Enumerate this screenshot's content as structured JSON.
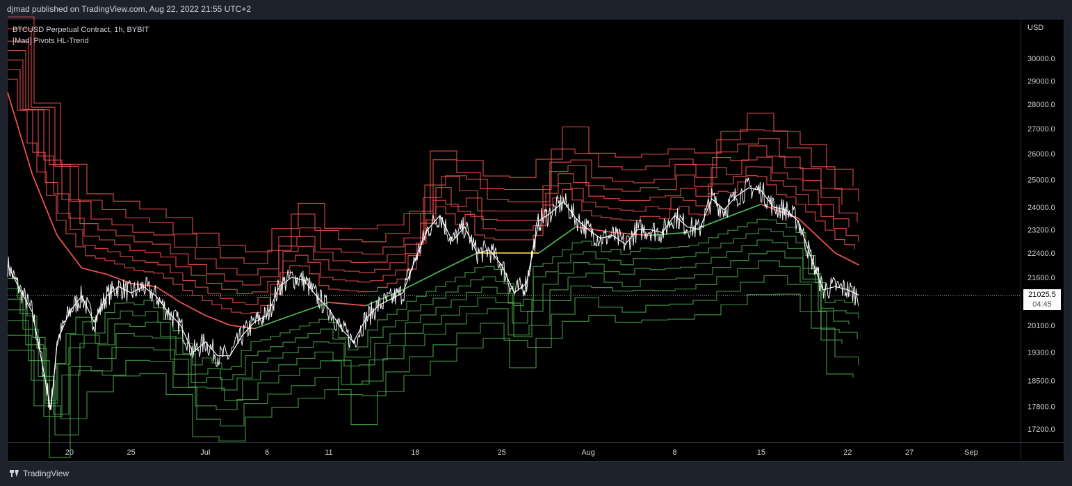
{
  "header": {
    "published": "djmad published on TradingView.com, Aug 22, 2022 21:55 UTC+2"
  },
  "legend": {
    "symbol": "BTCUSD Perpetual Contract, 1h, BYBIT",
    "indicator": "[Mad] Pivots HL-Trend"
  },
  "axis": {
    "currency": "USD"
  },
  "last_price": {
    "value": "21025.5",
    "countdown": "04:45"
  },
  "footer": {
    "brand": "TradingView"
  },
  "colors": {
    "price": "#ffffff",
    "bull": "#4caf50",
    "bear": "#f05050",
    "neutral": "#f0d030",
    "background": "#000000"
  },
  "chart_data": {
    "type": "line",
    "title": "BTCUSD Perpetual Contract, 1h, BYBIT",
    "y_scale": "log",
    "ylim": [
      16900,
      31800
    ],
    "y_ticks": [
      30000.0,
      29000.0,
      28000.0,
      27000.0,
      26000.0,
      25000.0,
      24000.0,
      23200.0,
      22400.0,
      21600.0,
      20100.0,
      19300.0,
      18500.0,
      17800.0,
      17200.0
    ],
    "x_ticks": [
      {
        "label": "20",
        "date": "2022-06-20"
      },
      {
        "label": "25",
        "date": "2022-06-25"
      },
      {
        "label": "Jul",
        "date": "2022-07-01"
      },
      {
        "label": "6",
        "date": "2022-07-06"
      },
      {
        "label": "11",
        "date": "2022-07-11"
      },
      {
        "label": "18",
        "date": "2022-07-18"
      },
      {
        "label": "25",
        "date": "2022-07-25"
      },
      {
        "label": "Aug",
        "date": "2022-08-01"
      },
      {
        "label": "8",
        "date": "2022-08-08"
      },
      {
        "label": "15",
        "date": "2022-08-15"
      },
      {
        "label": "22",
        "date": "2022-08-22"
      },
      {
        "label": "27",
        "date": "2022-08-27"
      },
      {
        "label": "Sep",
        "date": "2022-09-01"
      }
    ],
    "xlim": [
      "2022-06-15",
      "2022-09-05"
    ],
    "last_price_line": 21025.5,
    "series": [
      {
        "role": "price",
        "points": [
          [
            "2022-06-15",
            22000
          ],
          [
            "2022-06-16",
            21200
          ],
          [
            "2022-06-17",
            20500
          ],
          [
            "2022-06-18",
            18600
          ],
          [
            "2022-06-18T12",
            17700
          ],
          [
            "2022-06-19",
            19600
          ],
          [
            "2022-06-20",
            20500
          ],
          [
            "2022-06-21",
            21000
          ],
          [
            "2022-06-22",
            20200
          ],
          [
            "2022-06-23",
            21000
          ],
          [
            "2022-06-24",
            21300
          ],
          [
            "2022-06-25",
            21100
          ],
          [
            "2022-06-26",
            21300
          ],
          [
            "2022-06-27",
            21000
          ],
          [
            "2022-06-28",
            20500
          ],
          [
            "2022-06-29",
            20100
          ],
          [
            "2022-06-30",
            19300
          ],
          [
            "2022-07-01",
            19600
          ],
          [
            "2022-07-02",
            19200
          ],
          [
            "2022-07-03",
            19200
          ],
          [
            "2022-07-04",
            19800
          ],
          [
            "2022-07-05",
            20200
          ],
          [
            "2022-07-06",
            20400
          ],
          [
            "2022-07-07",
            21300
          ],
          [
            "2022-07-08",
            21600
          ],
          [
            "2022-07-09",
            21500
          ],
          [
            "2022-07-10",
            21000
          ],
          [
            "2022-07-11",
            20600
          ],
          [
            "2022-07-12",
            20000
          ],
          [
            "2022-07-13",
            19600
          ],
          [
            "2022-07-14",
            20300
          ],
          [
            "2022-07-15",
            20700
          ],
          [
            "2022-07-16",
            20900
          ],
          [
            "2022-07-17",
            21100
          ],
          [
            "2022-07-18",
            22200
          ],
          [
            "2022-07-19",
            23200
          ],
          [
            "2022-07-20",
            23700
          ],
          [
            "2022-07-21",
            22800
          ],
          [
            "2022-07-22",
            23300
          ],
          [
            "2022-07-23",
            22400
          ],
          [
            "2022-07-24",
            22500
          ],
          [
            "2022-07-25",
            22000
          ],
          [
            "2022-07-26",
            21100
          ],
          [
            "2022-07-27",
            21400
          ],
          [
            "2022-07-28",
            23500
          ],
          [
            "2022-07-29",
            23800
          ],
          [
            "2022-07-30",
            24200
          ],
          [
            "2022-07-31",
            23600
          ],
          [
            "2022-08-01",
            23200
          ],
          [
            "2022-08-02",
            22900
          ],
          [
            "2022-08-03",
            23000
          ],
          [
            "2022-08-04",
            22700
          ],
          [
            "2022-08-05",
            23200
          ],
          [
            "2022-08-06",
            23200
          ],
          [
            "2022-08-07",
            23100
          ],
          [
            "2022-08-08",
            23700
          ],
          [
            "2022-08-09",
            23300
          ],
          [
            "2022-08-10",
            23200
          ],
          [
            "2022-08-11",
            24300
          ],
          [
            "2022-08-12",
            23900
          ],
          [
            "2022-08-13",
            24400
          ],
          [
            "2022-08-14",
            24700
          ],
          [
            "2022-08-15",
            24600
          ],
          [
            "2022-08-16",
            24000
          ],
          [
            "2022-08-17",
            23900
          ],
          [
            "2022-08-18",
            23500
          ],
          [
            "2022-08-19",
            22300
          ],
          [
            "2022-08-20",
            21200
          ],
          [
            "2022-08-21",
            21300
          ],
          [
            "2022-08-22",
            21200
          ],
          [
            "2022-08-22T22",
            21025.5
          ]
        ]
      },
      {
        "role": "trend",
        "points": [
          [
            "2022-06-15",
            28500
          ],
          [
            "2022-06-17",
            25200
          ],
          [
            "2022-06-19",
            23000
          ],
          [
            "2022-06-21",
            21900
          ],
          [
            "2022-06-23",
            21700
          ],
          [
            "2022-06-25",
            21400
          ],
          [
            "2022-06-27",
            21300
          ],
          [
            "2022-06-29",
            20800
          ],
          [
            "2022-07-01",
            20400
          ],
          [
            "2022-07-03",
            20100
          ],
          [
            "2022-07-05",
            20000
          ],
          [
            "2022-07-08",
            20400
          ],
          [
            "2022-07-11",
            20800
          ],
          [
            "2022-07-14",
            20700
          ],
          [
            "2022-07-17",
            21200
          ],
          [
            "2022-07-20",
            21800
          ],
          [
            "2022-07-23",
            22400
          ],
          [
            "2022-07-26",
            22400
          ],
          [
            "2022-07-28",
            22400
          ],
          [
            "2022-07-31",
            23300
          ],
          [
            "2022-08-03",
            23100
          ],
          [
            "2022-08-06",
            23000
          ],
          [
            "2022-08-09",
            23100
          ],
          [
            "2022-08-12",
            23600
          ],
          [
            "2022-08-15",
            24100
          ],
          [
            "2022-08-18",
            23600
          ],
          [
            "2022-08-21",
            22400
          ],
          [
            "2022-08-22T22",
            22000
          ]
        ]
      }
    ]
  }
}
